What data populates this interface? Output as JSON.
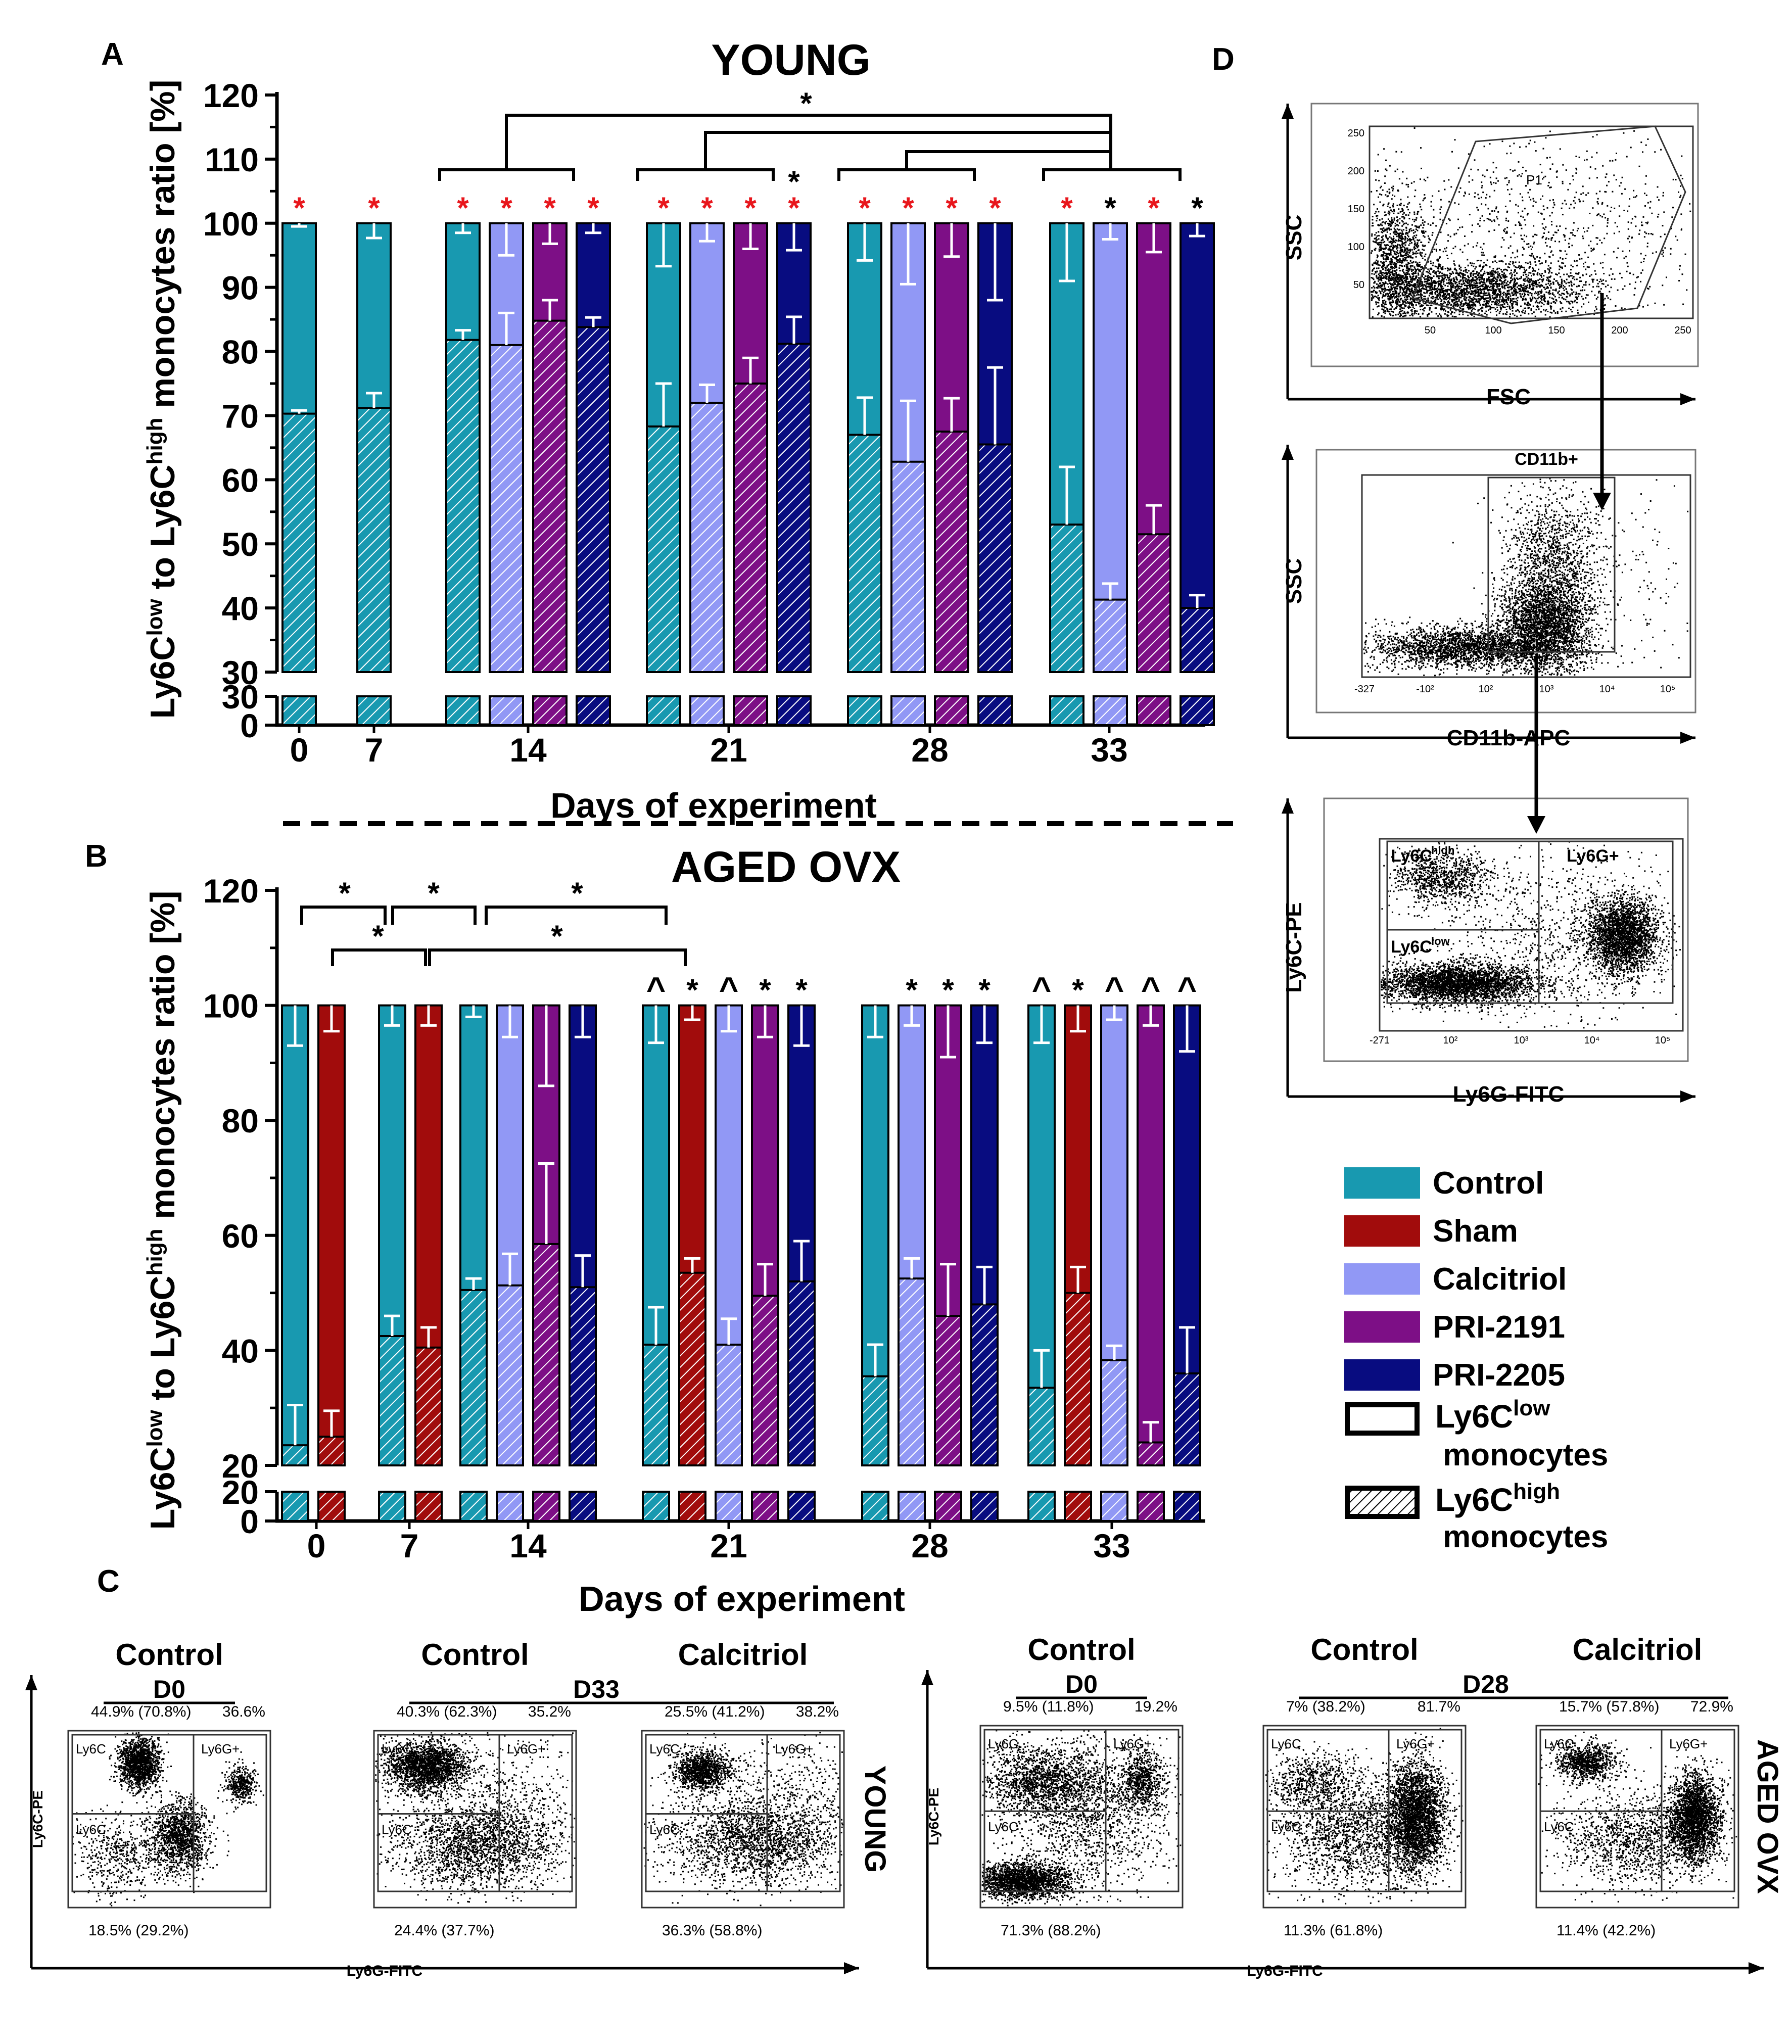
{
  "colors": {
    "control": "#1899B0",
    "sham": "#A10C0C",
    "calcitriol": "#9198F5",
    "pri2191": "#7D0F86",
    "pri2205": "#080C80",
    "sig_red": "#E8161C"
  },
  "panel_labels": {
    "a": "A",
    "b": "B",
    "c": "C",
    "d": "D"
  },
  "panelA": {
    "title": "YOUNG",
    "ylabel": "Ly6Clow to Ly6Chigh monocytes ratio [%]",
    "xlabel": "Days of experiment"
  },
  "panelB": {
    "title": "AGED OVX",
    "ylabel": "Ly6Clow to Ly6Chigh monocytes ratio [%]",
    "xlabel": "Days of experiment"
  },
  "chart_data": [
    {
      "type": "bar",
      "name": "young",
      "title": "YOUNG",
      "xlabel": "Days of experiment",
      "ylabel": "Ly6Clow to Ly6Chigh monocytes ratio [%]",
      "yaxis_break": [
        30,
        30
      ],
      "yticks_upper": [
        30,
        40,
        50,
        60,
        70,
        80,
        90,
        100,
        110,
        120
      ],
      "yticks_lower": [
        0,
        30
      ],
      "categories": [
        "0",
        "7",
        "14",
        "21",
        "28",
        "33"
      ],
      "groups": [
        {
          "day": "0",
          "bars": [
            {
              "series": "Control",
              "high": 70.3,
              "err_high": 0.5,
              "err_low": 0,
              "mark": "*",
              "mark_color": "red"
            }
          ]
        },
        {
          "day": "7",
          "bars": [
            {
              "series": "Control",
              "high": 71.2,
              "err_high": 2.3,
              "err_low": 1.5,
              "mark": "*",
              "mark_color": "red"
            }
          ]
        },
        {
          "day": "14",
          "bars": [
            {
              "series": "Control",
              "high": 81.8,
              "err_high": 1.5,
              "err_low": 1.0,
              "mark": "*",
              "mark_color": "red"
            },
            {
              "series": "Calcitriol",
              "high": 81.0,
              "err_high": 5.0,
              "err_low": 4.0,
              "mark": "*",
              "mark_color": "red"
            },
            {
              "series": "PRI-2191",
              "high": 84.8,
              "err_high": 3.2,
              "err_low": 2.5,
              "mark": "*",
              "mark_color": "red"
            },
            {
              "series": "PRI-2205",
              "high": 83.8,
              "err_high": 1.5,
              "err_low": 1.5,
              "mark": "*",
              "mark_color": "red"
            }
          ]
        },
        {
          "day": "21",
          "bars": [
            {
              "series": "Control",
              "high": 68.3,
              "err_high": 6.7,
              "err_low": 6.0,
              "mark": "*",
              "mark_color": "red"
            },
            {
              "series": "Calcitriol",
              "high": 72.0,
              "err_high": 2.8,
              "err_low": 2.5,
              "mark": "*",
              "mark_color": "red"
            },
            {
              "series": "PRI-2191",
              "high": 75.0,
              "err_high": 4.0,
              "err_low": 2.5,
              "mark": "*",
              "mark_color": "red"
            },
            {
              "series": "PRI-2205",
              "high": 81.2,
              "err_high": 4.2,
              "err_low": 3.0,
              "mark": "*",
              "mark_color": "red",
              "mark2": "*",
              "mark2_color": "black"
            }
          ]
        },
        {
          "day": "28",
          "bars": [
            {
              "series": "Control",
              "high": 67.0,
              "err_high": 5.8,
              "err_low": 5.0,
              "mark": "*",
              "mark_color": "red"
            },
            {
              "series": "Calcitriol",
              "high": 62.8,
              "err_high": 9.5,
              "err_low": 7.5,
              "mark": "*",
              "mark_color": "red"
            },
            {
              "series": "PRI-2191",
              "high": 67.5,
              "err_high": 5.2,
              "err_low": 4.5,
              "mark": "*",
              "mark_color": "red"
            },
            {
              "series": "PRI-2205",
              "high": 65.5,
              "err_high": 12.0,
              "err_low": 11.8,
              "mark": "*",
              "mark_color": "red"
            }
          ]
        },
        {
          "day": "33",
          "bars": [
            {
              "series": "Control",
              "high": 53.0,
              "err_high": 9.0,
              "err_low": 8.5,
              "mark": "*",
              "mark_color": "red"
            },
            {
              "series": "Calcitriol",
              "high": 41.3,
              "err_high": 2.5,
              "err_low": 1.5,
              "mark": "*",
              "mark_color": "black"
            },
            {
              "series": "PRI-2191",
              "high": 51.5,
              "err_high": 4.5,
              "err_low": 3.5,
              "mark": "*",
              "mark_color": "red"
            },
            {
              "series": "PRI-2205",
              "high": 40.0,
              "err_high": 2.0,
              "err_low": 1.5,
              "mark": "*",
              "mark_color": "black"
            }
          ]
        }
      ],
      "significance_label": "*"
    },
    {
      "type": "bar",
      "name": "aged_ovx",
      "title": "AGED OVX",
      "xlabel": "Days of experiment",
      "ylabel": "Ly6Clow to Ly6Chigh monocytes ratio [%]",
      "yaxis_break": [
        20,
        20
      ],
      "yticks_upper": [
        20,
        40,
        60,
        80,
        100,
        120
      ],
      "yticks_lower": [
        0,
        20
      ],
      "categories": [
        "0",
        "7",
        "14",
        "21",
        "28",
        "33"
      ],
      "groups": [
        {
          "day": "0",
          "bars": [
            {
              "series": "Control",
              "high": 23.5,
              "err_high": 7.0,
              "err_low": 3.5,
              "mark": "",
              "mark_color": "black"
            },
            {
              "series": "Sham",
              "high": 25.0,
              "err_high": 4.5,
              "err_low": 4.0,
              "mark": "",
              "mark_color": "black"
            }
          ]
        },
        {
          "day": "7",
          "bars": [
            {
              "series": "Control",
              "high": 42.5,
              "err_high": 3.5,
              "err_low": 3.0,
              "mark": "",
              "mark_color": "black"
            },
            {
              "series": "Sham",
              "high": 40.5,
              "err_high": 3.5,
              "err_low": 3.5,
              "mark": "",
              "mark_color": "black"
            }
          ]
        },
        {
          "day": "14",
          "bars": [
            {
              "series": "Control",
              "high": 50.5,
              "err_high": 2.0,
              "err_low": 1.5,
              "mark": "",
              "mark_color": "black"
            },
            {
              "series": "Calcitriol",
              "high": 51.3,
              "err_high": 5.5,
              "err_low": 5.0,
              "mark": "",
              "mark_color": "black"
            },
            {
              "series": "PRI-2191",
              "high": 58.5,
              "err_high": 14.0,
              "err_low": 13.5,
              "mark": "",
              "mark_color": "black"
            },
            {
              "series": "PRI-2205",
              "high": 51.0,
              "err_high": 5.5,
              "err_low": 5.0,
              "mark": "",
              "mark_color": "black"
            }
          ]
        },
        {
          "day": "21",
          "bars": [
            {
              "series": "Control",
              "high": 41.0,
              "err_high": 6.5,
              "err_low": 6.5,
              "mark": "^",
              "mark_color": "black"
            },
            {
              "series": "Sham",
              "high": 53.5,
              "err_high": 2.5,
              "err_low": 2.0,
              "mark": "*",
              "mark_color": "black"
            },
            {
              "series": "Calcitriol",
              "high": 41.0,
              "err_high": 4.5,
              "err_low": 4.5,
              "mark": "^",
              "mark_color": "black"
            },
            {
              "series": "PRI-2191",
              "high": 49.5,
              "err_high": 5.5,
              "err_low": 4.5,
              "mark": "*",
              "mark_color": "black"
            },
            {
              "series": "PRI-2205",
              "high": 52.0,
              "err_high": 7.0,
              "err_low": 7.0,
              "mark": "*",
              "mark_color": "black"
            }
          ]
        },
        {
          "day": "28",
          "bars": [
            {
              "series": "Control",
              "high": 35.5,
              "err_high": 5.5,
              "err_low": 5.5,
              "mark": "",
              "mark_color": "black"
            },
            {
              "series": "Calcitriol",
              "high": 52.5,
              "err_high": 3.5,
              "err_low": 3.5,
              "mark": "*",
              "mark_color": "black"
            },
            {
              "series": "PRI-2191",
              "high": 46.0,
              "err_high": 9.0,
              "err_low": 9.0,
              "mark": "*",
              "mark_color": "black"
            },
            {
              "series": "PRI-2205",
              "high": 48.0,
              "err_high": 6.5,
              "err_low": 6.0,
              "mark": "*",
              "mark_color": "black"
            }
          ]
        },
        {
          "day": "33",
          "bars": [
            {
              "series": "Control",
              "high": 33.5,
              "err_high": 6.5,
              "err_low": 6.5,
              "mark": "^",
              "mark_color": "black"
            },
            {
              "series": "Sham",
              "high": 50.0,
              "err_high": 4.5,
              "err_low": 4.5,
              "mark": "*",
              "mark_color": "black"
            },
            {
              "series": "Calcitriol",
              "high": 38.3,
              "err_high": 2.5,
              "err_low": 2.0,
              "mark": "^",
              "mark_color": "black"
            },
            {
              "series": "PRI-2191",
              "high": 24.0,
              "err_high": 3.5,
              "err_low": 3.0,
              "mark": "^",
              "mark_color": "black"
            },
            {
              "series": "PRI-2205",
              "high": 36.0,
              "err_high": 8.0,
              "err_low": 7.5,
              "mark": "^",
              "mark_color": "black"
            }
          ]
        }
      ],
      "significance_label": "*"
    }
  ],
  "legend": {
    "items": [
      {
        "key": "control",
        "label": "Control"
      },
      {
        "key": "sham",
        "label": "Sham"
      },
      {
        "key": "calcitriol",
        "label": "Calcitriol"
      },
      {
        "key": "pri2191",
        "label": "PRI-2191"
      },
      {
        "key": "pri2205",
        "label": "PRI-2205"
      }
    ],
    "low_label": "Ly6C",
    "low_sup": "low",
    "low_word": "monocytes",
    "high_label": "Ly6C",
    "high_sup": "high",
    "high_word": "monocytes"
  },
  "panelD": {
    "plot1": {
      "ylabel": "SSC",
      "xlabel": "FSC",
      "gate": "P1",
      "yticks": [
        "250",
        "200",
        "150",
        "100",
        "50"
      ],
      "xticks": [
        "50",
        "100",
        "150",
        "200",
        "250"
      ]
    },
    "plot2": {
      "ylabel": "SSC",
      "xlabel": "CD11b-APC",
      "gate": "CD11b+",
      "xticks": [
        "-327",
        "-10²",
        "10²",
        "10³",
        "10⁴",
        "10⁵"
      ]
    },
    "plot3": {
      "ylabel": "Ly6C-PE",
      "xlabel": "Ly6G-FITC",
      "q_tl": "Ly6Chigh",
      "q_tr": "Ly6G+",
      "q_bl": "Ly6Clow",
      "xticks": [
        "-271",
        "10²",
        "10³",
        "10⁴",
        "10⁵"
      ]
    }
  },
  "panelC": {
    "young": {
      "side_label": "YOUNG",
      "axis_x": "Ly6G-FITC",
      "axis_y": "Ly6C-PE",
      "plots": [
        {
          "title": "Control",
          "day": "D0",
          "top_left": "44.9% (70.8%)",
          "top_right": "36.6%",
          "bottom": "18.5% (29.2%)"
        },
        {
          "title": "Control",
          "day": "D33",
          "top_left": "40.3% (62.3%)",
          "top_right": "35.2%",
          "bottom": "24.4% (37.7%)"
        },
        {
          "title": "Calcitriol",
          "day": "",
          "top_left": "25.5% (41.2%)",
          "top_right": "38.2%",
          "bottom": "36.3% (58.8%)"
        }
      ]
    },
    "aged": {
      "side_label": "AGED OVX",
      "axis_x": "Ly6G-FITC",
      "axis_y": "Ly6C-PE",
      "plots": [
        {
          "title": "Control",
          "day": "D0",
          "top_left": "9.5% (11.8%)",
          "top_right": "19.2%",
          "bottom": "71.3% (88.2%)"
        },
        {
          "title": "Control",
          "day": "D28",
          "top_left": "7% (38.2%)",
          "top_right": "81.7%",
          "bottom": "11.3% (61.8%)"
        },
        {
          "title": "Calcitriol",
          "day": "",
          "top_left": "15.7% (57.8%)",
          "top_right": "72.9%",
          "bottom": "11.4% (42.2%)"
        }
      ]
    },
    "quadrants": {
      "tl": "Ly6Chigh",
      "tr": "Ly6G+",
      "bl": "Ly6Clow"
    }
  }
}
